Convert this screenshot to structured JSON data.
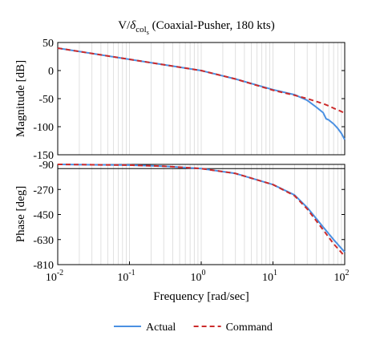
{
  "figure": {
    "title_main": "V/",
    "title_delta": "δ",
    "title_sub1": "col",
    "title_sub2": "s",
    "title_rest": " (Coaxial-Pusher, 180 kts)"
  },
  "chart_data": [
    {
      "type": "line",
      "panel": "magnitude",
      "ylabel": "Magnitude [dB]",
      "xscale": "log",
      "xlim": [
        0.01,
        100
      ],
      "ylim": [
        -150,
        50
      ],
      "yticks": [
        50,
        0,
        -50,
        -100,
        -150
      ],
      "ytick_labels": [
        "50",
        "0",
        "-50",
        "-100",
        "-150"
      ],
      "grid": "vertical-minor-log",
      "series": [
        {
          "name": "Actual",
          "color": "#4a90e2",
          "style": "solid",
          "x": [
            0.01,
            0.1,
            1,
            3,
            10,
            20,
            30,
            40,
            50,
            55,
            60,
            70,
            80,
            90,
            100
          ],
          "y": [
            40,
            20,
            0,
            -15,
            -34,
            -43,
            -53,
            -65,
            -75,
            -86,
            -88,
            -95,
            -103,
            -112,
            -123
          ]
        },
        {
          "name": "Command",
          "color": "#cc2b2b",
          "style": "dashed",
          "x": [
            0.01,
            0.1,
            1,
            3,
            10,
            20,
            30,
            40,
            50,
            60,
            70,
            80,
            90,
            100
          ],
          "y": [
            40,
            20,
            0,
            -15,
            -35,
            -44,
            -50,
            -55,
            -59,
            -63,
            -67,
            -70,
            -73,
            -76
          ]
        }
      ]
    },
    {
      "type": "line",
      "panel": "phase",
      "ylabel": "Phase [deg]",
      "xlabel": "Frequency [rad/sec]",
      "xscale": "log",
      "xlim": [
        0.01,
        100
      ],
      "ylim": [
        -810,
        -90
      ],
      "yticks": [
        -90,
        -270,
        -450,
        -630,
        -810
      ],
      "ytick_labels": [
        "-90",
        "-270",
        "-450",
        "-630",
        "-810"
      ],
      "reference_line": -120,
      "xticks": [
        0.01,
        0.1,
        1,
        10,
        100
      ],
      "xtick_labels": [
        {
          "base": "10",
          "exp": "-2"
        },
        {
          "base": "10",
          "exp": "-1"
        },
        {
          "base": "10",
          "exp": "0"
        },
        {
          "base": "10",
          "exp": "1"
        },
        {
          "base": "10",
          "exp": "2"
        }
      ],
      "grid": "vertical-minor-log",
      "series": [
        {
          "name": "Actual",
          "color": "#4a90e2",
          "style": "solid",
          "x": [
            0.01,
            0.1,
            0.3,
            1,
            3,
            10,
            20,
            30,
            50,
            70,
            100
          ],
          "y": [
            -90,
            -95,
            -103,
            -120,
            -155,
            -235,
            -310,
            -400,
            -540,
            -630,
            -720
          ]
        },
        {
          "name": "Command",
          "color": "#cc2b2b",
          "style": "dashed",
          "x": [
            0.01,
            0.1,
            0.3,
            1,
            3,
            10,
            20,
            30,
            50,
            70,
            100
          ],
          "y": [
            -90,
            -95,
            -103,
            -120,
            -155,
            -235,
            -315,
            -410,
            -560,
            -660,
            -750
          ]
        }
      ]
    }
  ],
  "legend": {
    "position": "bottom-center",
    "items": [
      {
        "label": "Actual",
        "color": "#4a90e2",
        "style": "solid"
      },
      {
        "label": "Command",
        "color": "#cc2b2b",
        "style": "dashed"
      }
    ]
  }
}
